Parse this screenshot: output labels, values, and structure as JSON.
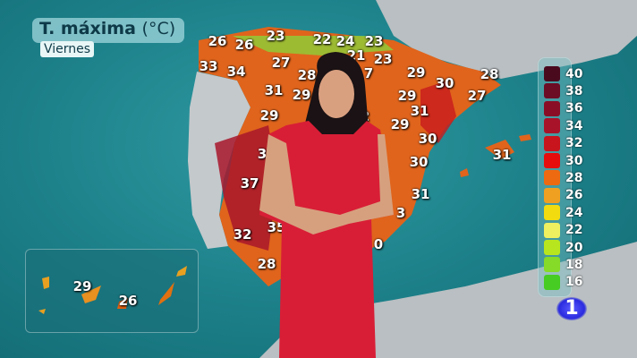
{
  "header": {
    "title": "T. máxima",
    "unit": "(°C)",
    "day": "Viernes"
  },
  "map": {
    "region": "España",
    "temperatures": [
      "26",
      "26",
      "23",
      "22",
      "24",
      "23",
      "21",
      "23",
      "33",
      "34",
      "27",
      "28",
      "7",
      "29",
      "28",
      "31",
      "29",
      "30",
      "29",
      "27",
      "29",
      "2",
      "31",
      "29",
      "30",
      "31",
      "3",
      "37",
      "30",
      "31",
      "3",
      "32",
      "35",
      "28",
      "0"
    ],
    "canarias": [
      "29",
      "26"
    ]
  },
  "legend": {
    "labels": [
      "40",
      "38",
      "36",
      "34",
      "32",
      "30",
      "28",
      "26",
      "24",
      "22",
      "20",
      "18",
      "16"
    ],
    "colors": [
      "#4a0a1e",
      "#6d0c25",
      "#8a0f26",
      "#a8132a",
      "#c8141d",
      "#e60d0d",
      "#ee6a10",
      "#f0a020",
      "#f2dc10",
      "#eef060",
      "#b8e61e",
      "#86da28",
      "#46cc22"
    ]
  },
  "channel_logo": "1",
  "colors": {
    "sea": "#1c7f88",
    "land_hot": "#e0641c",
    "land_grey": "#b9bfc2",
    "dress": "#d81e36"
  }
}
